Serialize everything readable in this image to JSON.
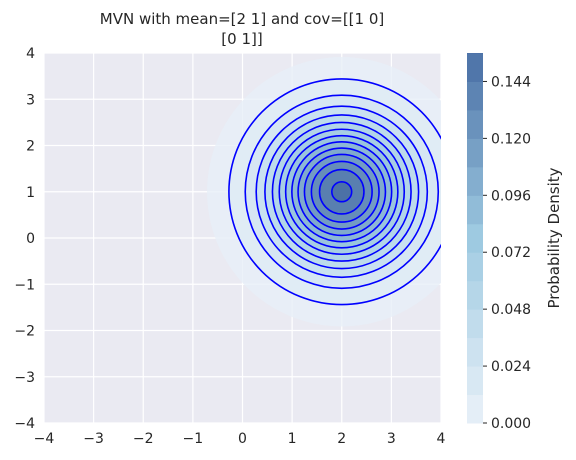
{
  "chart_data": {
    "type": "contour",
    "title_line1": "MVN with mean=[2 1] and cov=[[1 0]",
    "title_line2": "[0 1]]",
    "mean": [
      2,
      1
    ],
    "cov": [
      [
        1,
        0
      ],
      [
        0,
        1
      ]
    ],
    "xlim": [
      -4,
      4
    ],
    "ylim": [
      -4,
      4
    ],
    "x_ticks": [
      -4,
      -3,
      -2,
      -1,
      0,
      1,
      2,
      3,
      4
    ],
    "y_ticks": [
      -4,
      -3,
      -2,
      -1,
      0,
      1,
      2,
      3,
      4
    ],
    "x_tick_labels": [
      "−4",
      "−3",
      "−2",
      "−1",
      "0",
      "1",
      "2",
      "3",
      "4"
    ],
    "y_tick_labels": [
      "−4",
      "−3",
      "−2",
      "−1",
      "0",
      "1",
      "2",
      "3",
      "4"
    ],
    "contour_levels": [
      0.012,
      0.024,
      0.036,
      0.048,
      0.06,
      0.072,
      0.084,
      0.096,
      0.108,
      0.12,
      0.132,
      0.144,
      0.156
    ],
    "grid": true,
    "colorbar": {
      "label": "Probability Density",
      "min": 0.0,
      "max": 0.156,
      "ticks": [
        0.0,
        0.024,
        0.048,
        0.072,
        0.096,
        0.12,
        0.144
      ],
      "tick_labels": [
        "0.000",
        "0.024",
        "0.048",
        "0.072",
        "0.096",
        "0.120",
        "0.144"
      ]
    },
    "colors": {
      "axes_bg": "#eaeaf2",
      "grid": "#ffffff",
      "contour_line": "#0000ff",
      "fill_low": "#eaf1f9",
      "fill_mid": "#9ecae1",
      "fill_high": "#4a6fa5"
    }
  }
}
